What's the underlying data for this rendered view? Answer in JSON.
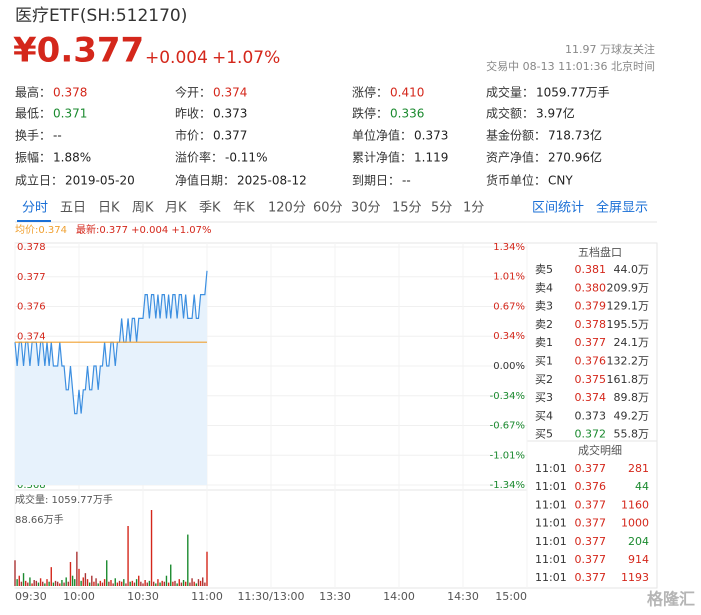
{
  "header": {
    "name": "医疗ETF(SH:512170)",
    "price": "¥0.377",
    "change": "+0.004",
    "pct": "+1.07%",
    "followers": "11.97 万球友关注",
    "status": "交易中 08-13 11:01:36 北京时间"
  },
  "stats": [
    [
      {
        "label": "最高：",
        "value": "0.378",
        "color": "#d4271b"
      },
      {
        "label": "今开：",
        "value": "0.374",
        "color": "#d4271b"
      },
      {
        "label": "涨停：",
        "value": "0.410",
        "color": "#d4271b"
      },
      {
        "label": "成交量：",
        "value": "1059.77万手"
      }
    ],
    [
      {
        "label": "最低：",
        "value": "0.371",
        "color": "#1b8a2f"
      },
      {
        "label": "昨收：",
        "value": "0.373"
      },
      {
        "label": "跌停：",
        "value": "0.336",
        "color": "#1b8a2f"
      },
      {
        "label": "成交额：",
        "value": "3.97亿"
      }
    ],
    [
      {
        "label": "换手：",
        "value": "--"
      },
      {
        "label": "市价：",
        "value": "0.377"
      },
      {
        "label": "单位净值：",
        "value": "0.373"
      },
      {
        "label": "基金份额：",
        "value": "718.73亿"
      }
    ],
    [
      {
        "label": "振幅：",
        "value": "1.88%"
      },
      {
        "label": "溢价率：",
        "value": "-0.11%"
      },
      {
        "label": "累计净值：",
        "value": "1.119"
      },
      {
        "label": "资产净值：",
        "value": "270.96亿"
      }
    ],
    [
      {
        "label": "成立日：",
        "value": "2019-05-20"
      },
      {
        "label": "净值日期：",
        "value": "2025-08-12"
      },
      {
        "label": "到期日：",
        "value": "--"
      },
      {
        "label": "货币单位：",
        "value": "CNY"
      }
    ]
  ],
  "tabs": [
    "分时",
    "五日",
    "日K",
    "周K",
    "月K",
    "季K",
    "年K",
    "120分",
    "60分",
    "30分",
    "15分",
    "5分",
    "1分"
  ],
  "links": [
    "区间统计",
    "全屏显示"
  ],
  "chart_data": {
    "type": "line",
    "avg_text": "均价:0.374",
    "last_text": "最新:0.377 +0.004 +1.07%",
    "xlim": [
      0,
      240
    ],
    "xticks": [
      {
        "value": 0,
        "label": "09:30"
      },
      {
        "value": 30,
        "label": "10:00"
      },
      {
        "value": 60,
        "label": "10:30"
      },
      {
        "value": 90,
        "label": "11:00"
      },
      {
        "value": 120,
        "label": "11:30/13:00"
      },
      {
        "value": 150,
        "label": "13:30"
      },
      {
        "value": 180,
        "label": "14:00"
      },
      {
        "value": 210,
        "label": "14:30"
      },
      {
        "value": 240,
        "label": "15:00"
      }
    ],
    "ylim": [
      0.368,
      0.378
    ],
    "yticks": [
      {
        "value": 0.378,
        "label": "0.378"
      },
      {
        "value": 0.37675,
        "label": "0.377"
      },
      {
        "value": 0.3755,
        "label": "0.376"
      },
      {
        "value": 0.37425,
        "label": "0.374"
      },
      {
        "value": 0.373,
        "label": "0.373"
      },
      {
        "value": 0.37175,
        "label": "0.372"
      },
      {
        "value": 0.3705,
        "label": "0.370"
      },
      {
        "value": 0.36925,
        "label": "0.369"
      },
      {
        "value": 0.368,
        "label": "0.368"
      }
    ],
    "y2lim": [
      -1.34,
      1.34
    ],
    "y2ticks": [
      {
        "value": 1.34,
        "label": "1.34%"
      },
      {
        "value": 1.01,
        "label": "1.01%"
      },
      {
        "value": 0.67,
        "label": "0.67%"
      },
      {
        "value": 0.34,
        "label": "0.34%"
      },
      {
        "value": 0,
        "label": "0.00%"
      },
      {
        "value": -0.34,
        "label": "-0.34%"
      },
      {
        "value": -0.67,
        "label": "-0.67%"
      },
      {
        "value": -1.01,
        "label": "-1.01%"
      },
      {
        "value": -1.34,
        "label": "-1.34%"
      }
    ],
    "series": [
      {
        "name": "最新",
        "color": "#3d8fe0",
        "values": [
          0.374,
          0.373,
          0.374,
          0.374,
          0.373,
          0.374,
          0.374,
          0.373,
          0.374,
          0.374,
          0.374,
          0.373,
          0.374,
          0.374,
          0.373,
          0.374,
          0.373,
          0.374,
          0.373,
          0.373,
          0.373,
          0.374,
          0.373,
          0.373,
          0.372,
          0.372,
          0.373,
          0.372,
          0.371,
          0.371,
          0.372,
          0.371,
          0.372,
          0.372,
          0.373,
          0.372,
          0.372,
          0.373,
          0.373,
          0.372,
          0.373,
          0.373,
          0.374,
          0.373,
          0.373,
          0.374,
          0.374,
          0.373,
          0.374,
          0.374,
          0.375,
          0.374,
          0.374,
          0.375,
          0.374,
          0.375,
          0.375,
          0.374,
          0.375,
          0.375,
          0.375,
          0.376,
          0.376,
          0.375,
          0.376,
          0.376,
          0.375,
          0.376,
          0.375,
          0.376,
          0.376,
          0.375,
          0.376,
          0.375,
          0.376,
          0.376,
          0.375,
          0.376,
          0.376,
          0.375,
          0.376,
          0.375,
          0.375,
          0.375,
          0.376,
          0.375,
          0.375,
          0.376,
          0.376,
          0.376,
          0.377
        ]
      },
      {
        "name": "均价",
        "color": "#f0a030",
        "values": [
          0.374,
          0.374,
          0.374,
          0.374,
          0.374,
          0.374,
          0.374,
          0.374,
          0.374,
          0.374,
          0.374,
          0.374,
          0.374,
          0.374,
          0.374,
          0.374,
          0.374,
          0.374,
          0.374,
          0.374,
          0.374,
          0.374,
          0.374,
          0.374,
          0.374,
          0.374,
          0.374,
          0.374,
          0.374,
          0.374,
          0.374,
          0.374,
          0.374,
          0.374,
          0.374,
          0.374,
          0.374,
          0.374,
          0.374,
          0.374,
          0.374,
          0.374,
          0.374,
          0.374,
          0.374,
          0.374,
          0.374,
          0.374,
          0.374,
          0.374,
          0.374,
          0.374,
          0.374,
          0.374,
          0.374,
          0.374,
          0.374,
          0.374,
          0.374,
          0.374,
          0.374,
          0.374,
          0.374,
          0.374,
          0.374,
          0.374,
          0.374,
          0.374,
          0.374,
          0.374,
          0.374,
          0.374,
          0.374,
          0.374,
          0.374,
          0.374,
          0.374,
          0.374,
          0.374,
          0.374,
          0.374,
          0.374,
          0.374,
          0.374,
          0.374,
          0.374,
          0.374,
          0.374,
          0.374,
          0.374,
          0.374
        ]
      }
    ],
    "volume": {
      "title": "成交量: 1059.77万手",
      "ylim": [
        0,
        88.66
      ],
      "yticks": [
        {
          "value": 88.66,
          "label": "88.66万手"
        }
      ],
      "values": [
        30,
        8,
        12,
        5,
        15,
        6,
        4,
        10,
        3,
        7,
        6,
        4,
        9,
        5,
        3,
        8,
        5,
        22,
        4,
        6,
        5,
        3,
        7,
        4,
        10,
        5,
        28,
        12,
        8,
        40,
        20,
        6,
        10,
        15,
        8,
        4,
        12,
        5,
        9,
        3,
        6,
        4,
        8,
        30,
        5,
        7,
        3,
        9,
        4,
        6,
        5,
        8,
        3,
        70,
        5,
        6,
        4,
        8,
        12,
        5,
        3,
        7,
        4,
        6,
        88.66,
        5,
        3,
        8,
        4,
        6,
        5,
        12,
        4,
        25,
        5,
        6,
        3,
        8,
        4,
        7,
        5,
        60,
        4,
        9,
        5,
        3,
        8,
        6,
        10,
        4,
        40
      ]
    }
  },
  "order_book": {
    "title": "五档盘口",
    "rows": [
      {
        "label": "卖5",
        "price": "0.381",
        "vol": "44.0万",
        "color": "#d4271b"
      },
      {
        "label": "卖4",
        "price": "0.380",
        "vol": "209.9万",
        "color": "#d4271b"
      },
      {
        "label": "卖3",
        "price": "0.379",
        "vol": "129.1万",
        "color": "#d4271b"
      },
      {
        "label": "卖2",
        "price": "0.378",
        "vol": "195.5万",
        "color": "#d4271b"
      },
      {
        "label": "卖1",
        "price": "0.377",
        "vol": "24.1万",
        "color": "#d4271b"
      },
      {
        "label": "买1",
        "price": "0.376",
        "vol": "132.2万",
        "color": "#d4271b"
      },
      {
        "label": "买2",
        "price": "0.375",
        "vol": "161.8万",
        "color": "#d4271b"
      },
      {
        "label": "买3",
        "price": "0.374",
        "vol": "89.8万",
        "color": "#d4271b"
      },
      {
        "label": "买4",
        "price": "0.373",
        "vol": "49.2万",
        "color": "#333333"
      },
      {
        "label": "买5",
        "price": "0.372",
        "vol": "55.8万",
        "color": "#1b8a2f"
      }
    ]
  },
  "trades": {
    "title": "成交明细",
    "rows": [
      {
        "time": "11:01",
        "price": "0.377",
        "vol": "281",
        "color": "#d4271b"
      },
      {
        "time": "11:01",
        "price": "0.376",
        "vol": "44",
        "color": "#1b8a2f"
      },
      {
        "time": "11:01",
        "price": "0.377",
        "vol": "1160",
        "color": "#d4271b"
      },
      {
        "time": "11:01",
        "price": "0.377",
        "vol": "1000",
        "color": "#d4271b"
      },
      {
        "time": "11:01",
        "price": "0.377",
        "vol": "204",
        "color": "#1b8a2f"
      },
      {
        "time": "11:01",
        "price": "0.377",
        "vol": "914",
        "color": "#d4271b"
      },
      {
        "time": "11:01",
        "price": "0.377",
        "vol": "1193",
        "color": "#d4271b"
      }
    ]
  },
  "watermark": "格隆汇"
}
